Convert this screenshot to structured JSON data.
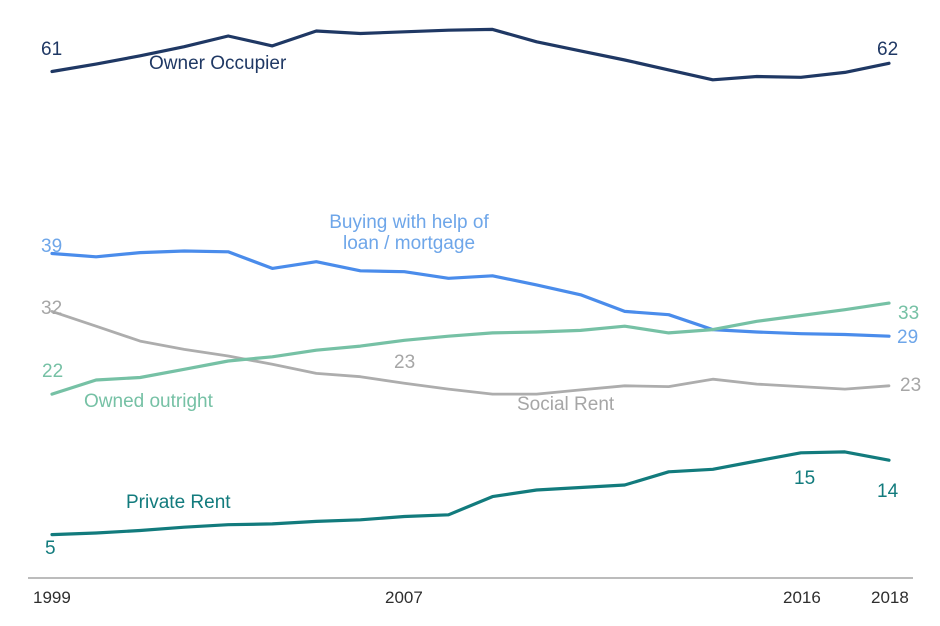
{
  "chart_data": {
    "type": "line",
    "grid": false,
    "legend": "inline-series-labels",
    "x": [
      1999,
      2000,
      2001,
      2002,
      2003,
      2004,
      2005,
      2006,
      2007,
      2008,
      2009,
      2010,
      2011,
      2012,
      2013,
      2014,
      2015,
      2016,
      2017,
      2018
    ],
    "x_tick_labels": [
      "1999",
      "2007",
      "2016",
      "2018"
    ],
    "ylim": [
      0,
      70
    ],
    "series": [
      {
        "name": "Owner Occupier",
        "color": "#1f3864",
        "start_label": "61",
        "end_label": "62",
        "values": [
          61,
          61.9,
          62.9,
          64,
          65.3,
          64.1,
          65.9,
          65.6,
          65.8,
          66,
          66.1,
          64.6,
          63.5,
          62.4,
          61.2,
          60,
          60.4,
          60.3,
          60.9,
          62
        ]
      },
      {
        "name": "Buying with help of loan / mortgage",
        "color": "#4a8ceb",
        "label_color": "#6ea6e9",
        "start_label": "39",
        "end_label": "29",
        "values": [
          39,
          38.6,
          39.1,
          39.3,
          39.2,
          37.2,
          38,
          36.9,
          36.8,
          36,
          36.3,
          35.2,
          34,
          32,
          31.6,
          29.8,
          29.5,
          29.3,
          29.2,
          29
        ]
      },
      {
        "name": "Owned outright",
        "color": "#76c1a5",
        "start_label": "22",
        "end_label": "33",
        "values": [
          22,
          23.7,
          24,
          25,
          26,
          26.5,
          27.3,
          27.8,
          28.5,
          29,
          29.4,
          29.5,
          29.7,
          30.2,
          29.4,
          29.8,
          30.8,
          31.5,
          32.2,
          33
        ]
      },
      {
        "name": "Social Rent",
        "color": "#adadad",
        "label_color": "#a6a6a6",
        "start_label": "32",
        "mid_label": "23",
        "end_label": "23",
        "values": [
          32,
          30.2,
          28.4,
          27.4,
          26.6,
          25.6,
          24.5,
          24.1,
          23.3,
          22.6,
          22,
          22,
          22.5,
          23,
          22.9,
          23.8,
          23.2,
          22.9,
          22.6,
          23
        ]
      },
      {
        "name": "Private Rent",
        "color": "#127b7d",
        "start_label": "5",
        "mid_label": "15",
        "end_label": "14",
        "values": [
          5,
          5.2,
          5.5,
          5.9,
          6.2,
          6.3,
          6.6,
          6.8,
          7.2,
          7.4,
          9.6,
          10.4,
          10.7,
          11,
          12.6,
          12.9,
          13.9,
          14.9,
          15,
          14
        ]
      }
    ]
  },
  "colors": {
    "axis": "#a6a6a6",
    "tick_text": "#2e2e2e"
  }
}
